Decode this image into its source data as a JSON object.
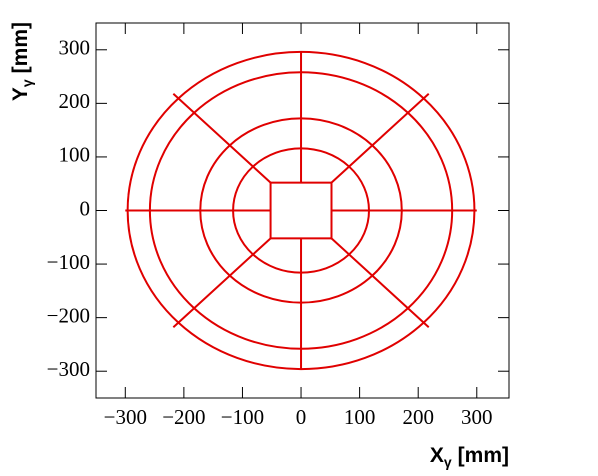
{
  "chart_data": {
    "type": "geometry",
    "xlabel": {
      "main": "X",
      "sub": "γ",
      "unit": "[mm]"
    },
    "ylabel": {
      "main": "Y",
      "sub": "γ",
      "unit": "[mm]"
    },
    "xlim": [
      -350,
      355
    ],
    "ylim": [
      -350,
      350
    ],
    "xticks": [
      {
        "value": -300,
        "label": "−300"
      },
      {
        "value": -200,
        "label": "−200"
      },
      {
        "value": -100,
        "label": "−100"
      },
      0,
      100,
      200,
      300
    ],
    "yticks": [
      {
        "value": -300,
        "label": "−300"
      },
      {
        "value": -200,
        "label": "−200"
      },
      {
        "value": -100,
        "label": "−100"
      },
      0,
      100,
      200,
      300
    ],
    "color": "#e00000",
    "circles": [
      296,
      258,
      172,
      116
    ],
    "square": {
      "x": [
        -52,
        52
      ],
      "y": [
        -52,
        52
      ]
    },
    "segments": [
      [
        52,
        0,
        300,
        0
      ],
      [
        -300,
        0,
        -52,
        0
      ],
      [
        0,
        52,
        0,
        296
      ],
      [
        0,
        -296,
        0,
        -52
      ],
      [
        52,
        52,
        218,
        218
      ],
      [
        -52,
        52,
        -218,
        218
      ],
      [
        52,
        -52,
        218,
        -218
      ],
      [
        -52,
        -52,
        -218,
        -218
      ]
    ]
  }
}
